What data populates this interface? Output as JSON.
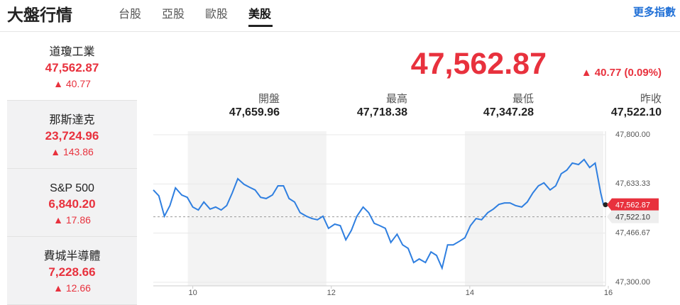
{
  "header": {
    "title": "大盤行情",
    "tabs": [
      "台股",
      "亞股",
      "歐股",
      "美股"
    ],
    "active_tab": 3,
    "more_link": "更多指數"
  },
  "indices": [
    {
      "name": "道瓊工業",
      "value": "47,562.87",
      "change": "▲ 40.77"
    },
    {
      "name": "那斯達克",
      "value": "23,724.96",
      "change": "▲ 143.86"
    },
    {
      "name": "S&P 500",
      "value": "6,840.20",
      "change": "▲ 17.86"
    },
    {
      "name": "費城半導體",
      "value": "7,228.66",
      "change": "▲ 12.66"
    }
  ],
  "quote": {
    "price": "47,562.87",
    "change": "▲ 40.77 (0.09%)",
    "stats": [
      {
        "label": "開盤",
        "value": "47,659.96"
      },
      {
        "label": "最高",
        "value": "47,718.38"
      },
      {
        "label": "最低",
        "value": "47,347.28"
      },
      {
        "label": "昨收",
        "value": "47,522.10"
      }
    ]
  },
  "chart": {
    "type": "line",
    "color": "#2f7fe0",
    "x": [
      9.43,
      9.51,
      9.59,
      9.67,
      9.75,
      9.84,
      9.92,
      10.0,
      10.08,
      10.16,
      10.25,
      10.33,
      10.41,
      10.49,
      10.57,
      10.65,
      10.74,
      10.82,
      10.9,
      10.98,
      11.06,
      11.15,
      11.23,
      11.31,
      11.39,
      11.47,
      11.55,
      11.64,
      11.72,
      11.8,
      11.88,
      11.96,
      12.05,
      12.13,
      12.21,
      12.29,
      12.37,
      12.46,
      12.54,
      12.62,
      12.7,
      12.78,
      12.86,
      12.95,
      13.03,
      13.11,
      13.19,
      13.27,
      13.36,
      13.44,
      13.52,
      13.6,
      13.68,
      13.76,
      13.85,
      13.93,
      14.01,
      14.09,
      14.17,
      14.26,
      14.34,
      14.42,
      14.5,
      14.58,
      14.66,
      14.75,
      14.83,
      14.91,
      14.99,
      15.07,
      15.16,
      15.24,
      15.32,
      15.4,
      15.48,
      15.57,
      15.65,
      15.73,
      15.81,
      15.89,
      15.93
    ],
    "values": [
      47613,
      47593,
      47524,
      47560,
      47620,
      47596,
      47588,
      47555,
      47545,
      47572,
      47548,
      47555,
      47545,
      47560,
      47603,
      47651,
      47632,
      47622,
      47613,
      47588,
      47584,
      47596,
      47627,
      47627,
      47584,
      47572,
      47536,
      47524,
      47516,
      47512,
      47524,
      47483,
      47497,
      47492,
      47444,
      47476,
      47524,
      47555,
      47536,
      47500,
      47492,
      47483,
      47435,
      47463,
      47427,
      47415,
      47367,
      47379,
      47367,
      47403,
      47391,
      47348,
      47427,
      47427,
      47439,
      47451,
      47492,
      47516,
      47512,
      47536,
      47548,
      47564,
      47569,
      47569,
      47560,
      47555,
      47572,
      47603,
      47627,
      47637,
      47613,
      47627,
      47668,
      47680,
      47704,
      47699,
      47716,
      47689,
      47704,
      47603,
      47562.87
    ],
    "xlim": [
      9.43,
      16
    ],
    "ylim": [
      47300,
      47800
    ],
    "xticks": [
      10,
      12,
      14,
      16
    ],
    "yticks": [
      {
        "value": 47800,
        "label": "47,800.00"
      },
      {
        "value": 47633.33,
        "label": "47,633.33"
      },
      {
        "value": 47466.67,
        "label": "47,466.67"
      },
      {
        "value": 47300,
        "label": "47,300.00"
      }
    ],
    "current": {
      "value": 47562.87,
      "label": "47,562.87"
    },
    "previous_close": {
      "value": 47522.1,
      "label": "47,522.10"
    }
  }
}
